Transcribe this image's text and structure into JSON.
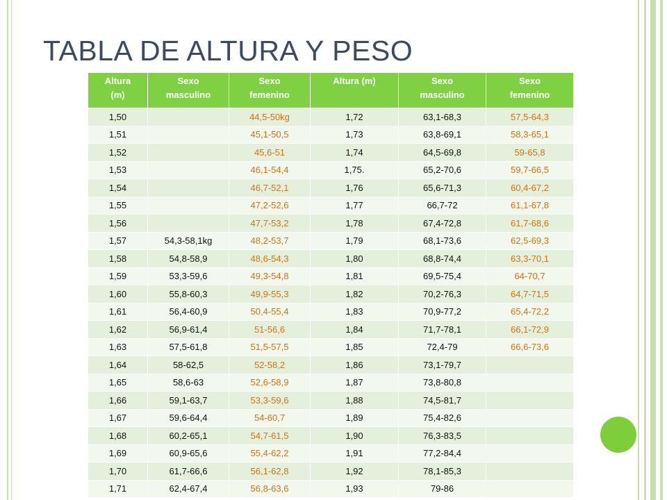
{
  "title": "TABLA DE ALTURA Y PESO",
  "colors": {
    "header_bg": "#80d044",
    "row_odd": "#e4f0dc",
    "row_even": "#f2f8ee",
    "female_text": "#d9700e",
    "title_text": "#3d4a5c",
    "accent_dot": "#7dce3a",
    "frame_lines": "#c6e0b0"
  },
  "table": {
    "headers": [
      [
        "Altura",
        "(m)"
      ],
      [
        "Sexo",
        "masculino"
      ],
      [
        "Sexo",
        "femenino"
      ],
      [
        "Altura (m)",
        ""
      ],
      [
        "Sexo",
        "masculino"
      ],
      [
        "Sexo",
        "femenino"
      ]
    ],
    "rows": [
      [
        "1,50",
        "",
        "44,5-50kg",
        "1,72",
        "63,1-68,3",
        "57,5-64,3"
      ],
      [
        "1,51",
        "",
        "45,1-50,5",
        "1,73",
        "63,8-69,1",
        "58,3-65,1"
      ],
      [
        "1,52",
        "",
        "45,6-51",
        "1,74",
        "64,5-69,8",
        "59-65,8"
      ],
      [
        "1,53",
        "",
        "46,1-54,4",
        "1,75.",
        "65,2-70,6",
        "59,7-66,5"
      ],
      [
        "1,54",
        "",
        "46,7-52,1",
        "1,76",
        "65,6-71,3",
        "60,4-67,2"
      ],
      [
        "1,55",
        "",
        "47,2-52,6",
        "1,77",
        "66,7-72",
        "61,1-67,8"
      ],
      [
        "1,56",
        "",
        "47,7-53,2",
        "1,78",
        "67,4-72,8",
        "61,7-68,6"
      ],
      [
        "1,57",
        "54,3-58,1kg",
        "48,2-53,7",
        "1,79",
        "68,1-73,6",
        "62,5-69,3"
      ],
      [
        "1,58",
        "54,8-58,9",
        "48,6-54,3",
        "1,80",
        "68,8-74,4",
        "63,3-70,1"
      ],
      [
        "1,59",
        "53,3-59,6",
        "49,3-54,8",
        "1,81",
        "69,5-75,4",
        "64-70,7"
      ],
      [
        "1,60",
        "55,8-60,3",
        "49,9-55,3",
        "1,82",
        "70,2-76,3",
        "64,7-71,5"
      ],
      [
        "1,61",
        "56,4-60,9",
        "50,4-55,4",
        "1,83",
        "70,9-77,2",
        "65,4-72,2"
      ],
      [
        "1,62",
        "56,9-61,4",
        "51-56,6",
        "1,84",
        "71,7-78,1",
        "66,1-72,9"
      ],
      [
        "1,63",
        "57,5-61,8",
        "51,5-57,5",
        "1,85",
        "72,4-79",
        "66,6-73,6"
      ],
      [
        "1,64",
        "58-62,5",
        "52-58,2",
        "1,86",
        "73,1-79,7",
        ""
      ],
      [
        "1,65",
        "58,6-63",
        "52,6-58,9",
        "1,87",
        "73,8-80,8",
        ""
      ],
      [
        "1,66",
        "59,1-63,7",
        "53,3-59,6",
        "1,88",
        "74,5-81,7",
        ""
      ],
      [
        "1,67",
        "59,6-64,4",
        "54-60,7",
        "1,89",
        "75,4-82,6",
        ""
      ],
      [
        "1,68",
        "60,2-65,1",
        "54,7-61,5",
        "1,90",
        "76,3-83,5",
        ""
      ],
      [
        "1,69",
        "60,9-65,6",
        "55,4-62,2",
        "1,91",
        "77,2-84,4",
        ""
      ],
      [
        "1,70",
        "61,7-66,6",
        "56,1-62,8",
        "1,92",
        "78,1-85,3",
        ""
      ],
      [
        "1,71",
        "62,4-67,4",
        "56,8-63,6",
        "1,93",
        "79-86",
        ""
      ]
    ]
  }
}
